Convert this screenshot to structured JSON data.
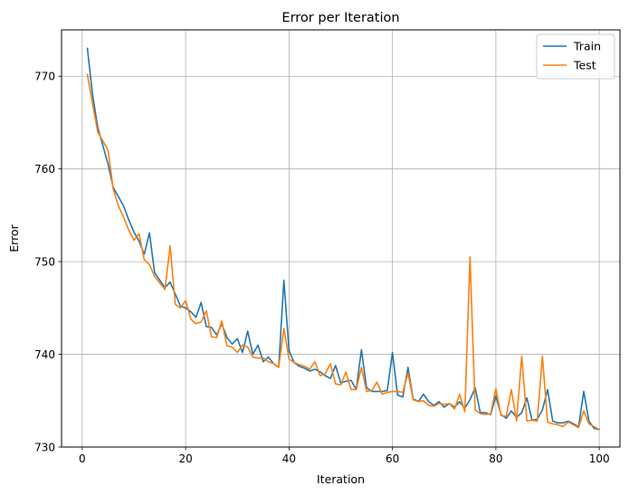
{
  "chart_data": {
    "type": "line",
    "title": "Error per Iteration",
    "xlabel": "Iteration",
    "ylabel": "Error",
    "xlim": [
      -4,
      104
    ],
    "ylim": [
      730,
      775
    ],
    "xticks": [
      0,
      20,
      40,
      60,
      80,
      100
    ],
    "yticks": [
      730,
      740,
      750,
      760,
      770
    ],
    "grid": true,
    "legend_position": "top-right",
    "x": [
      1,
      2,
      3,
      4,
      5,
      6,
      7,
      8,
      9,
      10,
      11,
      12,
      13,
      14,
      15,
      16,
      17,
      18,
      19,
      20,
      21,
      22,
      23,
      24,
      25,
      26,
      27,
      28,
      29,
      30,
      31,
      32,
      33,
      34,
      35,
      36,
      37,
      38,
      39,
      40,
      41,
      42,
      43,
      44,
      45,
      46,
      47,
      48,
      49,
      50,
      51,
      52,
      53,
      54,
      55,
      56,
      57,
      58,
      59,
      60,
      61,
      62,
      63,
      64,
      65,
      66,
      67,
      68,
      69,
      70,
      71,
      72,
      73,
      74,
      75,
      76,
      77,
      78,
      79,
      80,
      81,
      82,
      83,
      84,
      85,
      86,
      87,
      88,
      89,
      90,
      91,
      92,
      93,
      94,
      95,
      96,
      97,
      98,
      99,
      100
    ],
    "series": [
      {
        "name": "Train",
        "color": "#1f77b4",
        "values": [
          773.0,
          768.0,
          764.5,
          762.5,
          760.5,
          758.0,
          757.0,
          756.0,
          754.5,
          753.2,
          752.2,
          750.8,
          753.1,
          748.8,
          748.0,
          747.2,
          747.8,
          746.5,
          745.2,
          745.0,
          744.6,
          744.0,
          745.6,
          743.0,
          742.9,
          742.1,
          743.3,
          741.8,
          741.1,
          741.7,
          740.2,
          742.5,
          740.0,
          741.0,
          739.2,
          739.7,
          739.0,
          738.6,
          748.0,
          740.4,
          739.1,
          738.7,
          738.5,
          738.2,
          738.4,
          738.1,
          737.7,
          737.4,
          738.8,
          736.9,
          737.1,
          737.2,
          736.2,
          740.5,
          736.4,
          736.0,
          736.0,
          736.0,
          736.1,
          740.2,
          735.6,
          735.4,
          738.6,
          735.2,
          734.9,
          735.7,
          734.9,
          734.5,
          734.9,
          734.3,
          734.7,
          734.3,
          734.9,
          734.2,
          735.1,
          736.4,
          733.7,
          733.7,
          733.5,
          735.5,
          733.5,
          733.1,
          733.9,
          733.2,
          733.7,
          735.3,
          732.9,
          733.0,
          734.0,
          736.2,
          732.8,
          732.6,
          732.6,
          732.8,
          732.5,
          732.2,
          736.0,
          732.8,
          732.0,
          731.9
        ]
      },
      {
        "name": "Test",
        "color": "#ff7f0e",
        "values": [
          770.2,
          767.0,
          764.0,
          763.0,
          762.0,
          757.8,
          756.0,
          754.8,
          753.4,
          752.3,
          753.0,
          750.2,
          749.7,
          748.4,
          747.7,
          747.0,
          751.7,
          745.4,
          745.0,
          745.8,
          743.8,
          743.3,
          743.5,
          744.7,
          741.9,
          741.8,
          743.6,
          740.9,
          740.8,
          740.2,
          741.0,
          740.8,
          739.7,
          739.6,
          739.6,
          739.2,
          739.0,
          738.6,
          742.8,
          739.5,
          739.1,
          738.9,
          738.7,
          738.4,
          739.2,
          737.7,
          737.9,
          739.0,
          736.8,
          736.7,
          738.1,
          736.2,
          736.2,
          738.6,
          736.0,
          736.1,
          737.0,
          735.7,
          735.9,
          736.0,
          736.0,
          735.9,
          738.0,
          735.1,
          734.9,
          735.0,
          734.5,
          734.4,
          734.7,
          734.6,
          734.7,
          734.1,
          735.7,
          733.8,
          750.5,
          734.0,
          733.6,
          733.5,
          733.6,
          736.3,
          733.4,
          733.3,
          736.2,
          732.8,
          739.8,
          732.8,
          732.9,
          732.8,
          739.8,
          732.7,
          732.5,
          732.4,
          732.2,
          732.7,
          732.4,
          732.1,
          733.9,
          732.5,
          732.2,
          731.9
        ]
      }
    ]
  }
}
